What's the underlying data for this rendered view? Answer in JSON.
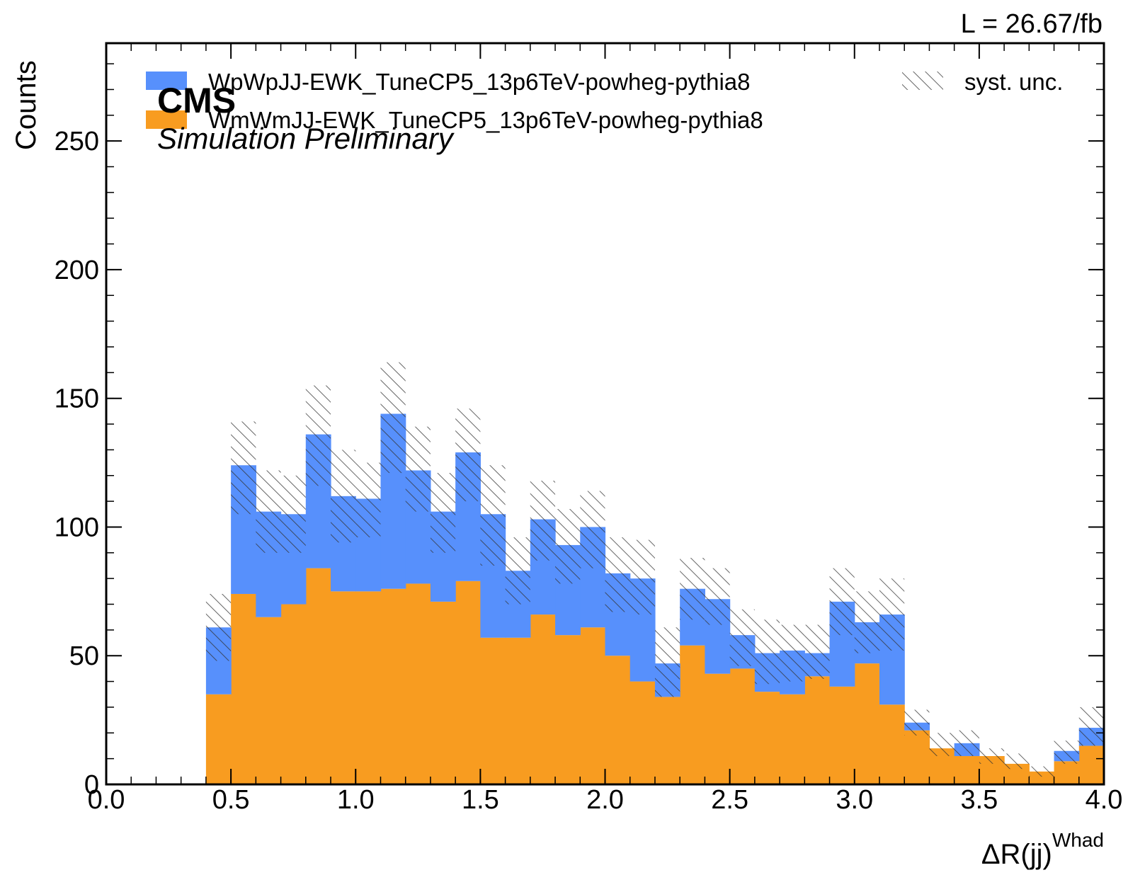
{
  "chart_data": {
    "type": "bar",
    "stacked": true,
    "histogram": true,
    "bin_edges": [
      0.0,
      0.1,
      0.2,
      0.3,
      0.4,
      0.5,
      0.6,
      0.7,
      0.8,
      0.9,
      1.0,
      1.1,
      1.2,
      1.3,
      1.4,
      1.5,
      1.6,
      1.7,
      1.8,
      1.9,
      2.0,
      2.1,
      2.2,
      2.3,
      2.4,
      2.5,
      2.6,
      2.7,
      2.8,
      2.9,
      3.0,
      3.1,
      3.2,
      3.3,
      3.4,
      3.5,
      3.6,
      3.7,
      3.8,
      3.9,
      4.0
    ],
    "series": [
      {
        "name": "WmWmJJ-EWK_TuneCP5_13p6TeV-powheg-pythia8",
        "color": "#f89c20",
        "values": [
          0,
          0,
          0,
          0,
          35,
          74,
          65,
          70,
          84,
          75,
          75,
          76,
          78,
          71,
          79,
          57,
          57,
          66,
          58,
          61,
          50,
          40,
          34,
          54,
          43,
          45,
          36,
          35,
          42,
          38,
          47,
          31,
          21,
          14,
          11,
          11,
          8,
          5,
          9,
          15
        ]
      },
      {
        "name": "WpWpJJ-EWK_TuneCP5_13p6TeV-powheg-pythia8",
        "color": "#5790fc",
        "values": [
          0,
          0,
          0,
          0,
          26,
          50,
          41,
          35,
          52,
          37,
          36,
          68,
          44,
          35,
          50,
          48,
          26,
          37,
          35,
          39,
          32,
          40,
          13,
          22,
          29,
          13,
          15,
          17,
          9,
          33,
          16,
          35,
          3,
          0,
          5,
          0,
          0,
          0,
          4,
          7
        ]
      }
    ],
    "uncertainty": {
      "name": "syst. unc.",
      "band_low": [
        0,
        0,
        0,
        0,
        48,
        105,
        90,
        90,
        116,
        94,
        96,
        121,
        106,
        90,
        110,
        85,
        70,
        87,
        78,
        84,
        67,
        66,
        34,
        64,
        62,
        46,
        39,
        40,
        41,
        58,
        51,
        52,
        19,
        11,
        11,
        8,
        6,
        3,
        8,
        15
      ],
      "band_high": [
        0,
        0,
        0,
        0,
        74,
        141,
        122,
        120,
        155,
        130,
        125,
        164,
        139,
        121,
        146,
        124,
        96,
        118,
        107,
        114,
        96,
        95,
        61,
        88,
        84,
        68,
        64,
        62,
        62,
        84,
        75,
        80,
        29,
        20,
        21,
        14,
        12,
        7,
        17,
        30
      ]
    },
    "xlabel": "ΔR(jj)",
    "xlabel_sup": "Whad",
    "ylabel": "Counts",
    "xlim": [
      0.0,
      4.0
    ],
    "ylim": [
      0,
      288
    ],
    "x_ticks": [
      "0.0",
      "0.5",
      "1.0",
      "1.5",
      "2.0",
      "2.5",
      "3.0",
      "3.5",
      "4.0"
    ],
    "y_ticks": [
      "0",
      "50",
      "100",
      "150",
      "200",
      "250"
    ],
    "x_minor_step": 0.1,
    "y_minor_step": 10,
    "grid": false,
    "legend_position": "top",
    "luminosity": "L = 26.67/fb",
    "experiment": "CMS",
    "experiment_sub": "Simulation Preliminary",
    "hatch_color": "#333333",
    "frame_color": "#000000"
  }
}
